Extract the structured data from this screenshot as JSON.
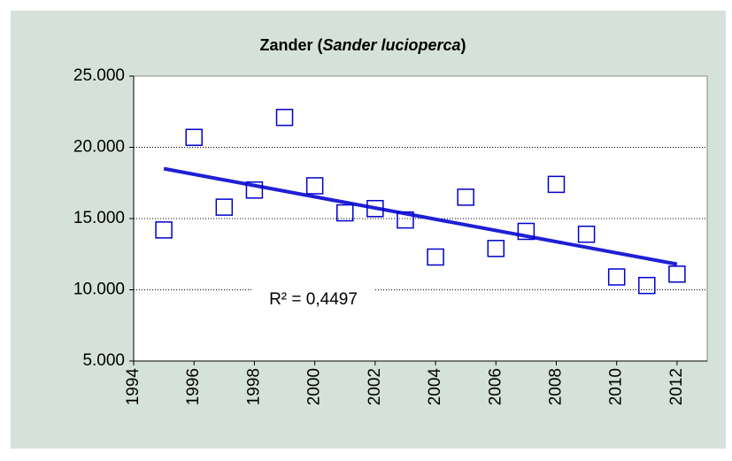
{
  "chart_data": {
    "type": "scatter",
    "title": [
      "Zander (",
      "Sander lucioperca",
      ")"
    ],
    "series": [
      {
        "color": "#0000cc",
        "x": [
          1995,
          1996,
          1997,
          1998,
          1999,
          2000,
          2001,
          2002,
          2003,
          2004,
          2005,
          2006,
          2007,
          2008,
          2009,
          2010,
          2011,
          2012
        ],
        "values": [
          14200,
          20700,
          15800,
          17000,
          22100,
          17300,
          15400,
          15700,
          14900,
          12300,
          16500,
          12900,
          14100,
          17400,
          13900,
          10900,
          10300,
          11100
        ]
      }
    ],
    "trendline": {
      "color": "#1f1fd6",
      "x": [
        1995,
        2012
      ],
      "values": [
        18500,
        11800
      ]
    },
    "annotation": "R² = 0,4497",
    "xlim": [
      1994,
      2013
    ],
    "xticks": [
      1994,
      1996,
      1998,
      2000,
      2002,
      2004,
      2006,
      2008,
      2010,
      2012
    ],
    "ylim": [
      5000,
      25000
    ],
    "yticks": [
      {
        "value": 5000,
        "label": "5.000"
      },
      {
        "value": 10000,
        "label": "10.000"
      },
      {
        "value": 15000,
        "label": "15.000"
      },
      {
        "value": 20000,
        "label": "20.000"
      },
      {
        "value": 25000,
        "label": "25.000"
      }
    ],
    "grid": true
  }
}
